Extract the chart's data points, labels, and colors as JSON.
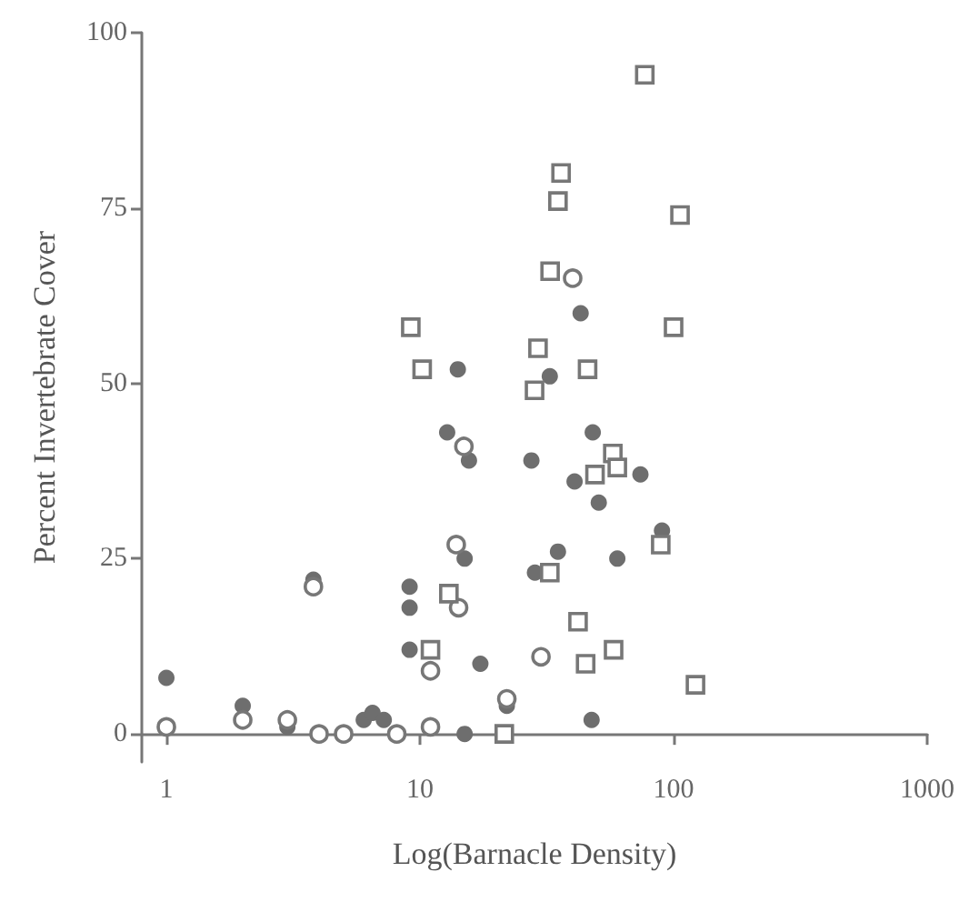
{
  "chart_data": {
    "type": "scatter",
    "xlabel": "Log(Barnacle Density)",
    "ylabel": "Percent Invertebrate Cover",
    "log": "x",
    "xlim": [
      0.8,
      1000
    ],
    "xticks": [
      1,
      10,
      100,
      1000
    ],
    "ylim": [
      -4,
      100
    ],
    "yticks": [
      0,
      25,
      50,
      75,
      100
    ],
    "grid": false,
    "series": [
      {
        "color": "#6e6e6e",
        "marker": "circle",
        "x": [
          1,
          2,
          3,
          3.8,
          6,
          6.5,
          7.2,
          9.1,
          9.1,
          9.1,
          12.8,
          15.6,
          14.1,
          15,
          15,
          17.3,
          22,
          27.5,
          28.4,
          32.5,
          35,
          40.7,
          43,
          47.5,
          48,
          50.7,
          60,
          74,
          90
        ],
        "values": [
          8,
          4,
          1,
          22,
          2,
          3,
          2,
          21,
          18,
          12,
          43,
          39,
          52,
          25,
          0,
          10,
          4,
          39,
          23,
          51,
          26,
          36,
          60,
          2,
          43,
          33,
          25,
          37,
          29
        ]
      },
      {
        "color": "#ffffff",
        "marker": "circle",
        "x": [
          1,
          2,
          3,
          3.8,
          4,
          5,
          8.1,
          11,
          11,
          13.9,
          14.2,
          14.9,
          22,
          30,
          40
        ],
        "values": [
          1,
          2,
          2,
          21,
          0,
          0,
          0,
          1,
          9,
          27,
          18,
          41,
          5,
          11,
          65
        ]
      },
      {
        "color": "#ffffff",
        "marker": "square",
        "x": [
          9.2,
          10.2,
          11,
          13,
          21.5,
          28.3,
          29.2,
          32.5,
          32.6,
          35,
          36,
          42,
          45,
          45.8,
          49,
          57.6,
          58,
          60,
          77,
          89,
          100,
          106,
          122
        ],
        "values": [
          58,
          52,
          12,
          20,
          0,
          49,
          55,
          23,
          66,
          76,
          80,
          16,
          10,
          52,
          37,
          40,
          12,
          38,
          94,
          27,
          58,
          74,
          7
        ]
      }
    ]
  }
}
